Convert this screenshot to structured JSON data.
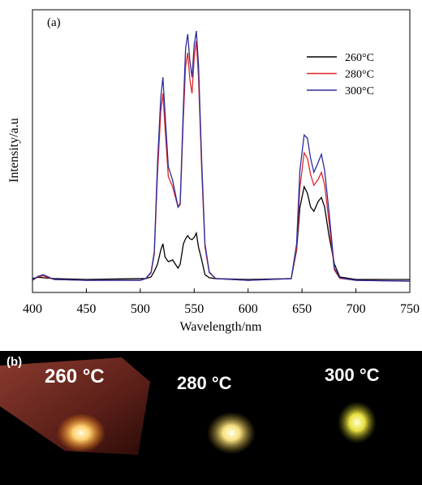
{
  "chart_data": {
    "type": "line",
    "panel_label": "(a)",
    "x_label": "Wavelength/nm",
    "y_label": "Intensity/a.u",
    "x": [
      400,
      405,
      410,
      420,
      450,
      500,
      505,
      510,
      513,
      516,
      519,
      521,
      523,
      526,
      530,
      535,
      537,
      540,
      542,
      544,
      546,
      548,
      550,
      552,
      554,
      557,
      560,
      564,
      570,
      600,
      640,
      645,
      648,
      652,
      655,
      658,
      661,
      665,
      668,
      671,
      675,
      680,
      685,
      700,
      750
    ],
    "series": [
      {
        "name": "260°C",
        "color": "#000000",
        "values": [
          4.9,
          5.4,
          5.2,
          4.9,
          4.6,
          4.9,
          4.9,
          5.5,
          7.5,
          10,
          15,
          17.2,
          12.5,
          10.9,
          11.5,
          8.6,
          10,
          17.2,
          19,
          20.1,
          19,
          18.7,
          19.5,
          21,
          16,
          11.5,
          6.3,
          5.2,
          4.9,
          4.6,
          4.9,
          15,
          30,
          37.4,
          35.1,
          30.2,
          28.7,
          32.2,
          33.6,
          30.2,
          20.1,
          10.1,
          5.5,
          4.6,
          4.6
        ]
      },
      {
        "name": "280°C",
        "color": "#e0262a",
        "values": [
          4.3,
          5.5,
          5.9,
          4.6,
          4.3,
          4.3,
          4.9,
          6.9,
          13.5,
          42,
          64,
          70.4,
          58,
          41,
          37.4,
          30.2,
          31,
          62,
          80,
          84.8,
          75.3,
          70.4,
          83,
          89,
          76,
          43,
          16,
          7,
          4.9,
          4.3,
          4.9,
          15.5,
          37,
          49.4,
          47.5,
          41.7,
          37.9,
          40,
          42.5,
          38,
          25,
          8,
          5,
          4.3,
          4
        ]
      },
      {
        "name": "300°C",
        "color": "#2b2f9e",
        "values": [
          4.3,
          5.7,
          6.3,
          4.6,
          4.3,
          4.3,
          4.9,
          7.2,
          14.4,
          46,
          69,
          76.1,
          63.2,
          44.5,
          39.7,
          30.2,
          31.6,
          66.1,
          86.2,
          91.4,
          81.9,
          76.1,
          87.6,
          92.5,
          80.5,
          46,
          17.2,
          7.2,
          4.9,
          4.3,
          4.9,
          17.2,
          43.1,
          55.7,
          54.6,
          47.4,
          42.5,
          46,
          48.9,
          43.1,
          28.7,
          8.6,
          5.2,
          4.3,
          4
        ]
      }
    ],
    "xlim": [
      400,
      750
    ],
    "xticks": [
      400,
      450,
      500,
      550,
      600,
      650,
      700,
      750
    ],
    "ylim": [
      0,
      100
    ],
    "legend": "upper right"
  },
  "photo": {
    "panel_label": "(b)",
    "captions": [
      "260 °C",
      "280 °C",
      "300 °C"
    ]
  }
}
